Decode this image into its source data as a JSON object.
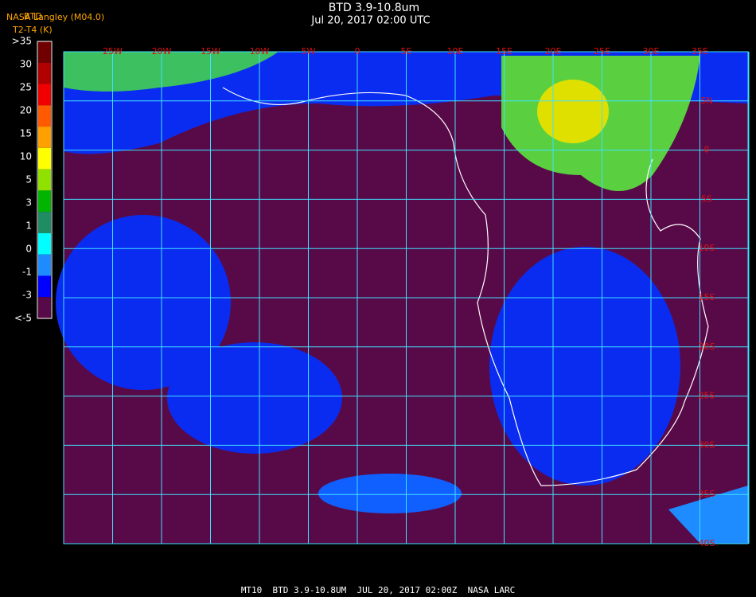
{
  "header": {
    "title": "BTD 3.9-10.8um",
    "subtitle": "Jul 20, 2017 02:00 UTC",
    "source": "NASA Langley (M04.0)",
    "colorbar_title": "BTD",
    "colorbar_units": "T2-T4 (K)"
  },
  "colorbar": {
    "labels": [
      ">35",
      "30",
      "25",
      "20",
      "15",
      "10",
      "5",
      "3",
      "1",
      "0",
      "-1",
      "-3",
      "<-5"
    ],
    "colors": [
      "#700000",
      "#b00000",
      "#f00000",
      "#ff5a00",
      "#ffa000",
      "#ffff00",
      "#90e000",
      "#00b400",
      "#208c64",
      "#00ffff",
      "#1e8cff",
      "#0000ff",
      "#580a48"
    ]
  },
  "map": {
    "lon_labels": [
      "25W",
      "20W",
      "15W",
      "10W",
      "5W",
      "0",
      "5E",
      "10E",
      "15E",
      "20E",
      "25E",
      "30E",
      "35E"
    ],
    "lat_labels": [
      "5N",
      "0",
      "5S",
      "10S",
      "15S",
      "20S",
      "25S",
      "30S",
      "35S",
      "40S"
    ]
  },
  "footer": "MT10  BTD 3.9-10.8UM  JUL 20, 2017 02:00Z  NASA LARC"
}
